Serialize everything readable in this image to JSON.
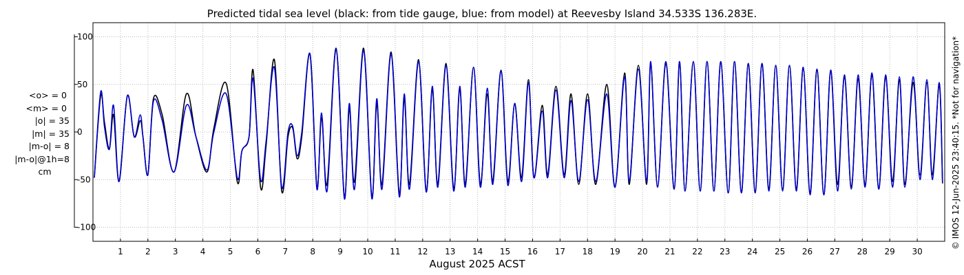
{
  "chart_data": {
    "type": "line",
    "title": "Predicted tidal sea level (black: from tide gauge, blue: from model) at Reevesby Island 34.533S 136.283E.",
    "xlabel": "August 2025 ACST",
    "ylabel": "",
    "xlim": [
      0,
      31
    ],
    "ylim": [
      -100,
      100
    ],
    "y_ticks": [
      -100,
      -50,
      0,
      50,
      100
    ],
    "x_tick_labels": [
      "1",
      "2",
      "3",
      "4",
      "5",
      "6",
      "7",
      "8",
      "9",
      "10",
      "11",
      "12",
      "13",
      "14",
      "15",
      "16",
      "17",
      "18",
      "19",
      "20",
      "21",
      "22",
      "23",
      "24",
      "25",
      "26",
      "27",
      "28",
      "29",
      "30"
    ],
    "grid": true,
    "colors": {
      "gauge": "#000000",
      "model": "#0000cc",
      "grid": "#b8b8b8"
    },
    "stats": [
      "<o> = 0",
      "<m> = 0",
      "|o| = 35",
      "|m| = 35",
      "|m-o| = 8",
      "|m-o|@1h=8",
      "cm"
    ],
    "copyright": "© IMOS 12-Jun-2025 23:40:15. *Not for navigation*",
    "series": [
      {
        "key": "gauge",
        "x": [
          0.05,
          0.28,
          0.42,
          0.6,
          0.75,
          0.95,
          1.25,
          1.5,
          1.72,
          1.82,
          2.0,
          2.2,
          2.52,
          2.95,
          3.4,
          3.75,
          4.15,
          4.4,
          4.85,
          5.25,
          5.42,
          5.68,
          5.83,
          6.1,
          6.3,
          6.6,
          6.87,
          7.1,
          7.27,
          7.43,
          7.6,
          7.9,
          8.15,
          8.32,
          8.52,
          8.85,
          9.15,
          9.33,
          9.52,
          9.85,
          10.15,
          10.33,
          10.52,
          10.85,
          11.15,
          11.33,
          11.52,
          11.85,
          12.13,
          12.35,
          12.55,
          12.85,
          13.13,
          13.35,
          13.55,
          13.85,
          14.1,
          14.35,
          14.55,
          14.85,
          15.1,
          15.35,
          15.6,
          15.85,
          16.05,
          16.35,
          16.55,
          16.85,
          17.15,
          17.4,
          17.68,
          18.0,
          18.3,
          18.7,
          19.0,
          19.35,
          19.52,
          19.85,
          20.15,
          20.3,
          20.55,
          20.85,
          21.15,
          21.35,
          21.55,
          21.85,
          22.1,
          22.35,
          22.6,
          22.85,
          23.12,
          23.35,
          23.6,
          23.85,
          24.1,
          24.35,
          24.6,
          24.85,
          25.1,
          25.35,
          25.6,
          25.85,
          26.1,
          26.35,
          26.6,
          26.85,
          27.1,
          27.35,
          27.6,
          27.85,
          28.1,
          28.35,
          28.6,
          28.85,
          29.1,
          29.35,
          29.55,
          29.85,
          30.1,
          30.35,
          30.55,
          30.8,
          30.92
        ],
        "y": [
          -48,
          38,
          10,
          -18,
          18,
          -52,
          38,
          -5,
          12,
          -5,
          -45,
          35,
          18,
          -42,
          40,
          -5,
          -42,
          4,
          51,
          -52,
          -20,
          -5,
          65,
          -58,
          -15,
          76,
          -62,
          -5,
          4,
          -28,
          -5,
          82,
          -58,
          15,
          -55,
          88,
          -68,
          25,
          -52,
          88,
          -68,
          30,
          -55,
          84,
          -65,
          35,
          -55,
          76,
          -62,
          45,
          -55,
          72,
          -60,
          45,
          -55,
          68,
          -55,
          40,
          -52,
          65,
          -52,
          30,
          -48,
          55,
          -48,
          28,
          -45,
          48,
          -45,
          40,
          -55,
          40,
          -55,
          50,
          -58,
          62,
          -55,
          70,
          -55,
          72,
          -57,
          72,
          -60,
          74,
          -62,
          74,
          -62,
          74,
          -62,
          74,
          -64,
          74,
          -64,
          72,
          -62,
          72,
          -60,
          70,
          -60,
          70,
          -60,
          68,
          -64,
          66,
          -66,
          65,
          -55,
          58,
          -58,
          56,
          -56,
          60,
          -60,
          58,
          -52,
          55,
          -55,
          52,
          -45,
          52,
          -45,
          50,
          -54
        ]
      },
      {
        "key": "model",
        "x": [
          0.05,
          0.28,
          0.42,
          0.6,
          0.75,
          0.95,
          1.25,
          1.5,
          1.72,
          1.82,
          2.0,
          2.2,
          2.52,
          2.95,
          3.4,
          3.75,
          4.15,
          4.4,
          4.85,
          5.25,
          5.42,
          5.68,
          5.83,
          6.1,
          6.3,
          6.6,
          6.87,
          7.1,
          7.27,
          7.43,
          7.6,
          7.9,
          8.15,
          8.32,
          8.52,
          8.85,
          9.15,
          9.33,
          9.52,
          9.85,
          10.15,
          10.33,
          10.52,
          10.85,
          11.15,
          11.33,
          11.52,
          11.85,
          12.13,
          12.35,
          12.55,
          12.85,
          13.13,
          13.35,
          13.55,
          13.85,
          14.1,
          14.35,
          14.55,
          14.85,
          15.1,
          15.35,
          15.6,
          15.85,
          16.05,
          16.35,
          16.55,
          16.85,
          17.15,
          17.4,
          17.68,
          18.0,
          18.3,
          18.7,
          19.0,
          19.35,
          19.52,
          19.85,
          20.15,
          20.3,
          20.55,
          20.85,
          21.15,
          21.35,
          21.55,
          21.85,
          22.1,
          22.35,
          22.6,
          22.85,
          23.12,
          23.35,
          23.6,
          23.85,
          24.1,
          24.35,
          24.6,
          24.85,
          25.1,
          25.35,
          25.6,
          25.85,
          26.1,
          26.35,
          26.6,
          26.85,
          27.1,
          27.35,
          27.6,
          27.85,
          28.1,
          28.35,
          28.6,
          28.85,
          29.1,
          29.35,
          29.55,
          29.85,
          30.1,
          30.35,
          30.55,
          30.8,
          30.92
        ],
        "y": [
          -48,
          42,
          5,
          -18,
          28,
          -52,
          38,
          -5,
          18,
          -5,
          -45,
          32,
          12,
          -42,
          28,
          -5,
          -40,
          0,
          40,
          -48,
          -20,
          -5,
          56,
          -50,
          -10,
          68,
          -58,
          0,
          6,
          -25,
          0,
          82,
          -60,
          20,
          -62,
          87,
          -70,
          30,
          -60,
          86,
          -70,
          35,
          -60,
          82,
          -68,
          40,
          -60,
          74,
          -63,
          48,
          -58,
          70,
          -62,
          48,
          -58,
          68,
          -58,
          46,
          -55,
          64,
          -56,
          30,
          -52,
          52,
          -48,
          22,
          -48,
          44,
          -48,
          33,
          -52,
          34,
          -52,
          40,
          -58,
          58,
          -52,
          66,
          -52,
          74,
          -58,
          74,
          -60,
          74,
          -62,
          74,
          -62,
          74,
          -62,
          74,
          -64,
          74,
          -64,
          72,
          -64,
          72,
          -62,
          70,
          -62,
          70,
          -62,
          68,
          -66,
          66,
          -66,
          65,
          -62,
          60,
          -60,
          60,
          -58,
          62,
          -60,
          60,
          -58,
          58,
          -58,
          58,
          -50,
          55,
          -50,
          52,
          -52
        ]
      }
    ]
  }
}
